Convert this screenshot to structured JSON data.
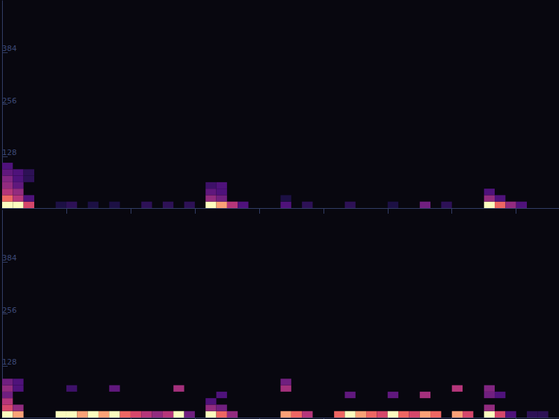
{
  "chart_data": [
    {
      "type": "spectrogram",
      "xlim": [
        0,
        26
      ],
      "xticks": [
        3,
        6,
        9,
        12,
        15,
        18,
        21,
        24
      ],
      "ylim": [
        0,
        512
      ],
      "yticks": [
        128,
        256,
        384
      ],
      "tick_labels": "y",
      "bin_width": 0.5,
      "bin_height": 16,
      "vlim": [
        0,
        1
      ],
      "cells": [
        [
          0,
          0,
          1
        ],
        [
          0,
          16,
          0.8
        ],
        [
          0,
          32,
          0.6
        ],
        [
          0,
          48,
          0.5
        ],
        [
          0,
          64,
          0.45
        ],
        [
          0,
          80,
          0.35
        ],
        [
          0,
          96,
          0.3
        ],
        [
          0.5,
          0,
          1
        ],
        [
          0.5,
          16,
          0.6
        ],
        [
          0.5,
          32,
          0.5
        ],
        [
          0.5,
          48,
          0.35
        ],
        [
          0.5,
          64,
          0.3
        ],
        [
          0.5,
          80,
          0.3
        ],
        [
          1,
          0,
          0.7
        ],
        [
          1,
          16,
          0.3
        ],
        [
          1,
          64,
          0.2
        ],
        [
          1,
          80,
          0.2
        ],
        [
          2.5,
          0,
          0.15
        ],
        [
          3,
          0,
          0.2
        ],
        [
          4,
          0,
          0.15
        ],
        [
          5,
          0,
          0.15
        ],
        [
          6.5,
          0,
          0.2
        ],
        [
          7.5,
          0,
          0.2
        ],
        [
          8.5,
          0,
          0.2
        ],
        [
          9.5,
          0,
          1
        ],
        [
          9.5,
          16,
          0.5
        ],
        [
          9.5,
          32,
          0.35
        ],
        [
          9.5,
          48,
          0.25
        ],
        [
          10,
          0,
          0.9
        ],
        [
          10,
          16,
          0.4
        ],
        [
          10,
          32,
          0.3
        ],
        [
          10,
          48,
          0.3
        ],
        [
          10.5,
          0,
          0.6
        ],
        [
          11,
          0,
          0.3
        ],
        [
          13,
          0,
          0.3
        ],
        [
          13,
          16,
          0.15
        ],
        [
          14,
          0,
          0.2
        ],
        [
          16,
          0,
          0.2
        ],
        [
          18,
          0,
          0.15
        ],
        [
          19.5,
          0,
          0.4
        ],
        [
          20.5,
          0,
          0.2
        ],
        [
          22.5,
          0,
          1
        ],
        [
          22.5,
          16,
          0.5
        ],
        [
          22.5,
          32,
          0.3
        ],
        [
          23,
          0,
          0.8
        ],
        [
          23,
          16,
          0.3
        ],
        [
          23.5,
          0,
          0.5
        ],
        [
          24,
          0,
          0.3
        ]
      ]
    },
    {
      "type": "spectrogram",
      "xlim": [
        0,
        26
      ],
      "xticks": [
        3,
        6,
        9,
        12,
        15,
        18,
        21,
        24
      ],
      "ylim": [
        0,
        512
      ],
      "yticks": [
        128,
        256,
        384
      ],
      "tick_labels": "y",
      "bin_width": 0.5,
      "bin_height": 16,
      "vlim": [
        0,
        1
      ],
      "cells": [
        [
          0,
          0,
          1
        ],
        [
          0,
          16,
          0.7
        ],
        [
          0,
          32,
          0.6
        ],
        [
          0,
          48,
          0.4
        ],
        [
          0,
          64,
          0.5
        ],
        [
          0,
          80,
          0.4
        ],
        [
          0.5,
          0,
          0.9
        ],
        [
          0.5,
          16,
          0.5
        ],
        [
          0.5,
          64,
          0.3
        ],
        [
          0.5,
          80,
          0.3
        ],
        [
          2.5,
          0,
          1
        ],
        [
          3,
          0,
          1
        ],
        [
          3,
          64,
          0.25
        ],
        [
          3.5,
          0,
          0.9
        ],
        [
          4,
          0,
          1
        ],
        [
          4.5,
          0,
          0.9
        ],
        [
          5,
          0,
          1
        ],
        [
          5,
          64,
          0.35
        ],
        [
          5.5,
          0,
          0.8
        ],
        [
          6,
          0,
          0.7
        ],
        [
          6.5,
          0,
          0.6
        ],
        [
          7,
          0,
          0.5
        ],
        [
          7.5,
          0,
          0.6
        ],
        [
          8,
          0,
          1
        ],
        [
          8,
          64,
          0.55
        ],
        [
          8.5,
          0,
          0.4
        ],
        [
          9.5,
          0,
          1
        ],
        [
          9.5,
          16,
          0.5
        ],
        [
          9.5,
          32,
          0.3
        ],
        [
          10,
          0,
          0.8
        ],
        [
          10,
          16,
          0.4
        ],
        [
          10,
          48,
          0.3
        ],
        [
          10.5,
          0,
          0.5
        ],
        [
          13,
          0,
          0.9
        ],
        [
          13,
          64,
          0.55
        ],
        [
          13,
          80,
          0.4
        ],
        [
          13.5,
          0,
          0.8
        ],
        [
          14,
          0,
          0.6
        ],
        [
          15.5,
          0,
          0.8
        ],
        [
          16,
          0,
          1
        ],
        [
          16,
          48,
          0.35
        ],
        [
          16.5,
          0,
          0.9
        ],
        [
          17,
          0,
          0.8
        ],
        [
          17.5,
          0,
          0.7
        ],
        [
          18,
          0,
          1
        ],
        [
          18,
          48,
          0.35
        ],
        [
          18.5,
          0,
          0.8
        ],
        [
          19,
          0,
          0.7
        ],
        [
          19.5,
          0,
          0.9
        ],
        [
          19.5,
          48,
          0.55
        ],
        [
          20,
          0,
          0.8
        ],
        [
          21,
          0,
          0.9
        ],
        [
          21,
          64,
          0.6
        ],
        [
          21.5,
          0,
          0.7
        ],
        [
          22.5,
          0,
          1
        ],
        [
          22.5,
          16,
          0.5
        ],
        [
          22.5,
          48,
          0.4
        ],
        [
          22.5,
          64,
          0.45
        ],
        [
          23,
          0,
          0.7
        ],
        [
          23,
          48,
          0.3
        ],
        [
          23.5,
          0,
          0.3
        ],
        [
          24.5,
          0,
          0.2
        ],
        [
          25,
          0,
          0.2
        ]
      ]
    }
  ]
}
